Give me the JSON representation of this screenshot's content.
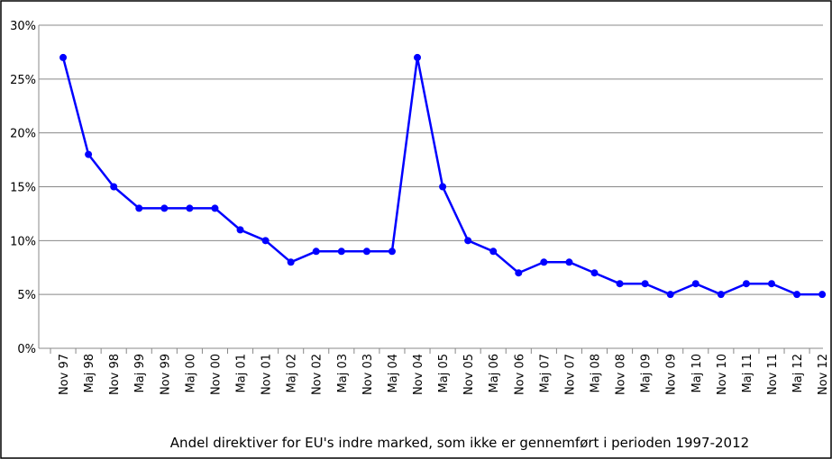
{
  "chart_data": {
    "type": "line",
    "title": "Andel direktiver for EU's indre marked, som ikke er gennemført i perioden 1997-2012",
    "categories": [
      "Nov 97",
      "Maj 98",
      "Nov 98",
      "Maj 99",
      "Nov 99",
      "Maj 00",
      "Nov 00",
      "Maj 01",
      "Nov 01",
      "Maj 02",
      "Nov 02",
      "Maj 03",
      "Nov 03",
      "Maj 04",
      "Nov 04",
      "Maj 05",
      "Nov 05",
      "Maj 06",
      "Nov 06",
      "Maj 07",
      "Nov 07",
      "Maj 08",
      "Nov 08",
      "Maj 09",
      "Nov 09",
      "Maj 10",
      "Nov 10",
      "Maj 11",
      "Nov 11",
      "Maj 12",
      "Nov 12"
    ],
    "series": [
      {
        "color": "#0000ff",
        "values": [
          27,
          18,
          15,
          13,
          13,
          13,
          13,
          11,
          10,
          8,
          9,
          9,
          9,
          9,
          27,
          15,
          10,
          9,
          7,
          8,
          8,
          7,
          6,
          6,
          5,
          6,
          5,
          6,
          6,
          5,
          5
        ]
      }
    ],
    "ylim": [
      0,
      30
    ],
    "yticks": [
      {
        "value": 0,
        "label": "0%"
      },
      {
        "value": 5,
        "label": "5%"
      },
      {
        "value": 10,
        "label": "10%"
      },
      {
        "value": 15,
        "label": "15%"
      },
      {
        "value": 20,
        "label": "20%"
      },
      {
        "value": 25,
        "label": "25%"
      },
      {
        "value": 30,
        "label": "30%"
      }
    ],
    "grid": true
  }
}
